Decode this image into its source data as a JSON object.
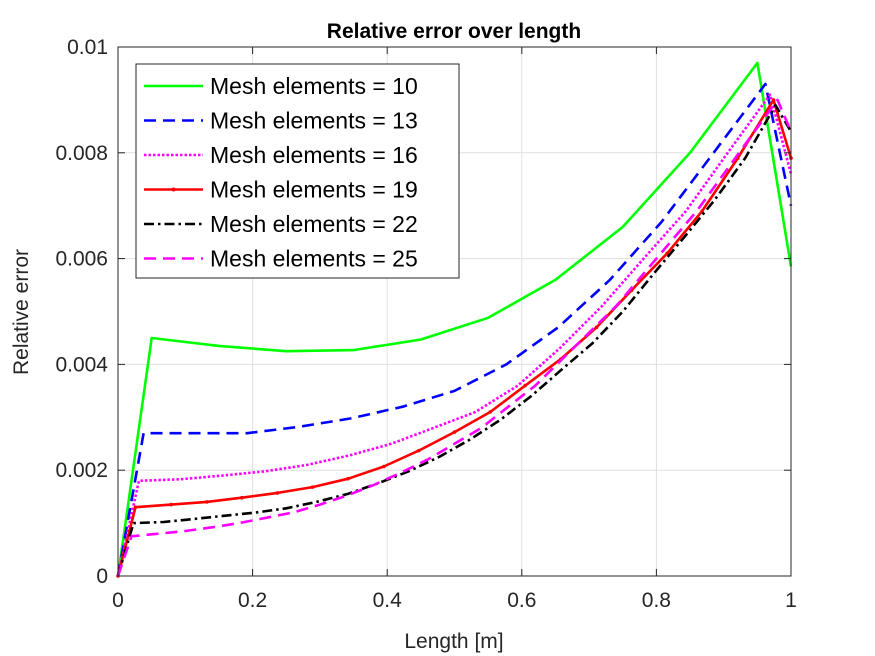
{
  "chart_data": {
    "type": "line",
    "title": "Relative error over length",
    "xlabel": "Length [m]",
    "ylabel": "Relative error",
    "xlim": [
      0,
      1
    ],
    "ylim": [
      0,
      0.01
    ],
    "xticks": [
      0,
      0.2,
      0.4,
      0.6,
      0.8,
      1
    ],
    "xtick_labels": [
      "0",
      "0.2",
      "0.4",
      "0.6",
      "0.8",
      "1"
    ],
    "yticks": [
      0,
      0.002,
      0.004,
      0.006,
      0.008,
      0.01
    ],
    "ytick_labels": [
      "0",
      "0.002",
      "0.004",
      "0.006",
      "0.008",
      "0.01"
    ],
    "grid": true,
    "legend_position": "top-left",
    "series": [
      {
        "name": "Mesh elements = 10",
        "color": "#00ff00",
        "style": "solid",
        "x": [
          0,
          0.05,
          0.15,
          0.25,
          0.35,
          0.45,
          0.55,
          0.65,
          0.75,
          0.85,
          0.95,
          1.0
        ],
        "y": [
          0,
          0.0045,
          0.00435,
          0.00425,
          0.00427,
          0.00447,
          0.00488,
          0.0056,
          0.0066,
          0.008,
          0.0097,
          0.00585
        ]
      },
      {
        "name": "Mesh elements = 13",
        "color": "#0000ff",
        "style": "dashed",
        "x": [
          0,
          0.038,
          0.115,
          0.192,
          0.269,
          0.346,
          0.423,
          0.5,
          0.577,
          0.654,
          0.731,
          0.808,
          0.885,
          0.962,
          1.0
        ],
        "y": [
          0,
          0.0027,
          0.0027,
          0.0027,
          0.00282,
          0.00298,
          0.0032,
          0.0035,
          0.004,
          0.0047,
          0.0056,
          0.0067,
          0.008,
          0.0093,
          0.007
        ]
      },
      {
        "name": "Mesh elements = 16",
        "color": "#ff00ff",
        "style": "dotted",
        "x": [
          0,
          0.031,
          0.094,
          0.156,
          0.219,
          0.281,
          0.344,
          0.406,
          0.469,
          0.531,
          0.594,
          0.656,
          0.719,
          0.781,
          0.844,
          0.906,
          0.969,
          1.0
        ],
        "y": [
          0,
          0.0018,
          0.00183,
          0.0019,
          0.00198,
          0.0021,
          0.00228,
          0.0025,
          0.0028,
          0.0031,
          0.0036,
          0.0043,
          0.0051,
          0.006,
          0.0069,
          0.008,
          0.0091,
          0.0076
        ]
      },
      {
        "name": "Mesh elements = 19",
        "color": "#ff0000",
        "style": "solid-marker",
        "x": [
          0,
          0.026,
          0.079,
          0.132,
          0.184,
          0.237,
          0.289,
          0.342,
          0.395,
          0.447,
          0.5,
          0.553,
          0.605,
          0.658,
          0.711,
          0.763,
          0.816,
          0.868,
          0.921,
          0.974,
          1.0
        ],
        "y": [
          0,
          0.0013,
          0.00135,
          0.0014,
          0.00148,
          0.00157,
          0.00168,
          0.00184,
          0.00207,
          0.00237,
          0.00272,
          0.0031,
          0.0036,
          0.0041,
          0.0047,
          0.0054,
          0.0061,
          0.0069,
          0.0079,
          0.009,
          0.0079
        ]
      },
      {
        "name": "Mesh elements = 22",
        "color": "#000000",
        "style": "dash-dot",
        "x": [
          0,
          0.023,
          0.068,
          0.114,
          0.159,
          0.205,
          0.25,
          0.295,
          0.341,
          0.386,
          0.432,
          0.477,
          0.523,
          0.568,
          0.614,
          0.659,
          0.705,
          0.75,
          0.795,
          0.841,
          0.886,
          0.932,
          0.977,
          1.0
        ],
        "y": [
          0,
          0.001,
          0.00102,
          0.00108,
          0.00114,
          0.0012,
          0.00128,
          0.0014,
          0.00155,
          0.00175,
          0.00198,
          0.00225,
          0.00258,
          0.00295,
          0.0034,
          0.0039,
          0.0044,
          0.005,
          0.0057,
          0.0064,
          0.0071,
          0.0079,
          0.0089,
          0.0084
        ]
      },
      {
        "name": "Mesh elements = 25",
        "color": "#ff00ff",
        "style": "dashed",
        "x": [
          0,
          0.02,
          0.06,
          0.1,
          0.14,
          0.18,
          0.22,
          0.26,
          0.3,
          0.34,
          0.38,
          0.42,
          0.46,
          0.5,
          0.54,
          0.58,
          0.62,
          0.66,
          0.7,
          0.74,
          0.78,
          0.82,
          0.86,
          0.9,
          0.94,
          0.98,
          1.0
        ],
        "y": [
          0,
          0.00075,
          0.0008,
          0.00085,
          0.00092,
          0.001,
          0.0011,
          0.0012,
          0.00135,
          0.00152,
          0.00172,
          0.00195,
          0.0022,
          0.0025,
          0.0028,
          0.0032,
          0.0036,
          0.0041,
          0.0046,
          0.0051,
          0.0057,
          0.0063,
          0.0069,
          0.0076,
          0.0083,
          0.009,
          0.0084
        ]
      }
    ]
  }
}
